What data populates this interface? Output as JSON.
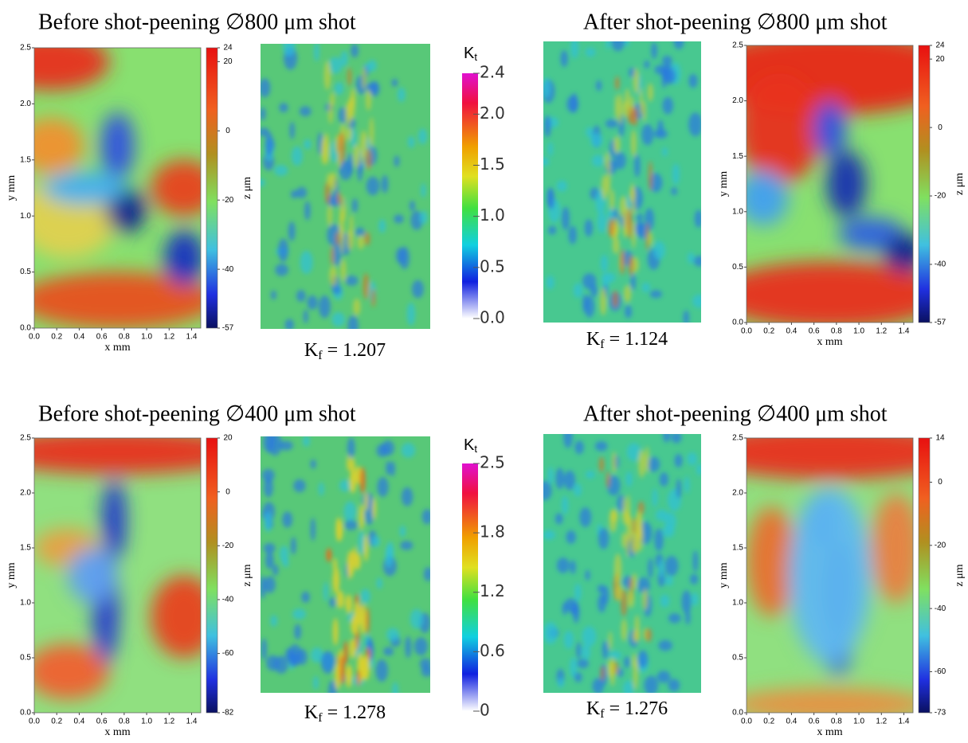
{
  "panels": [
    {
      "title": "Before shot-peening ∅800 μm shot",
      "height_map": {
        "x_label": "x mm",
        "y_label": "y mm",
        "x_ticks": [
          "0.0",
          "0.2",
          "0.4",
          "0.6",
          "0.8",
          "1.0",
          "1.2",
          "1.4"
        ],
        "y_ticks": [
          "0.0",
          "0.5",
          "1.0",
          "1.5",
          "2.0",
          "2.5"
        ],
        "colorbar_label": "z μm",
        "colorbar_ticks": [
          "24",
          "20",
          "0",
          "-20",
          "-40",
          "-57"
        ]
      },
      "kf": {
        "symbol": "K",
        "subscript": "f",
        "text": "= 1.207"
      }
    },
    {
      "title": "After shot-peening ∅800 μm shot",
      "height_map": {
        "x_label": "x mm",
        "y_label": "y mm",
        "x_ticks": [
          "0.0",
          "0.2",
          "0.4",
          "0.6",
          "0.8",
          "1.0",
          "1.2",
          "1.4"
        ],
        "y_ticks": [
          "0.0",
          "0.5",
          "1.0",
          "1.5",
          "2.0",
          "2.5"
        ],
        "colorbar_label": "z μm",
        "colorbar_ticks": [
          "24",
          "20",
          "0",
          "-20",
          "-40",
          "-57"
        ]
      },
      "kf": {
        "symbol": "K",
        "subscript": "f",
        "text": "= 1.124"
      }
    },
    {
      "title": "Before shot-peening ∅400 μm shot",
      "height_map": {
        "x_label": "x mm",
        "y_label": "y mm",
        "x_ticks": [
          "0.0",
          "0.2",
          "0.4",
          "0.6",
          "0.8",
          "1.0",
          "1.2",
          "1.4"
        ],
        "y_ticks": [
          "0.0",
          "0.5",
          "1.0",
          "1.5",
          "2.0",
          "2.5"
        ],
        "colorbar_label": "z μm",
        "colorbar_ticks": [
          "20",
          "0",
          "-20",
          "-40",
          "-60",
          "-82"
        ]
      },
      "kf": {
        "symbol": "K",
        "subscript": "f",
        "text": "= 1.278"
      }
    },
    {
      "title": "After shot-peening ∅400 μm shot",
      "height_map": {
        "x_label": "x mm",
        "y_label": "y mm",
        "x_ticks": [
          "0.0",
          "0.2",
          "0.4",
          "0.6",
          "0.8",
          "1.0",
          "1.2",
          "1.4"
        ],
        "y_ticks": [
          "0.0",
          "0.5",
          "1.0",
          "1.5",
          "2.0",
          "2.5"
        ],
        "colorbar_label": "z μm",
        "colorbar_ticks": [
          "14",
          "0",
          "-20",
          "-40",
          "-60",
          "-73"
        ]
      },
      "kf": {
        "symbol": "K",
        "subscript": "f",
        "text": "= 1.276"
      }
    }
  ],
  "kt_colorbars": [
    {
      "symbol": "K",
      "subscript": "t",
      "ticks": [
        "2.4",
        "2.0",
        "1.5",
        "1.0",
        "0.5",
        "0.0"
      ]
    },
    {
      "symbol": "K",
      "subscript": "t",
      "ticks": [
        "2.5",
        "1.8",
        "1.2",
        "0.6",
        "0"
      ]
    }
  ]
}
